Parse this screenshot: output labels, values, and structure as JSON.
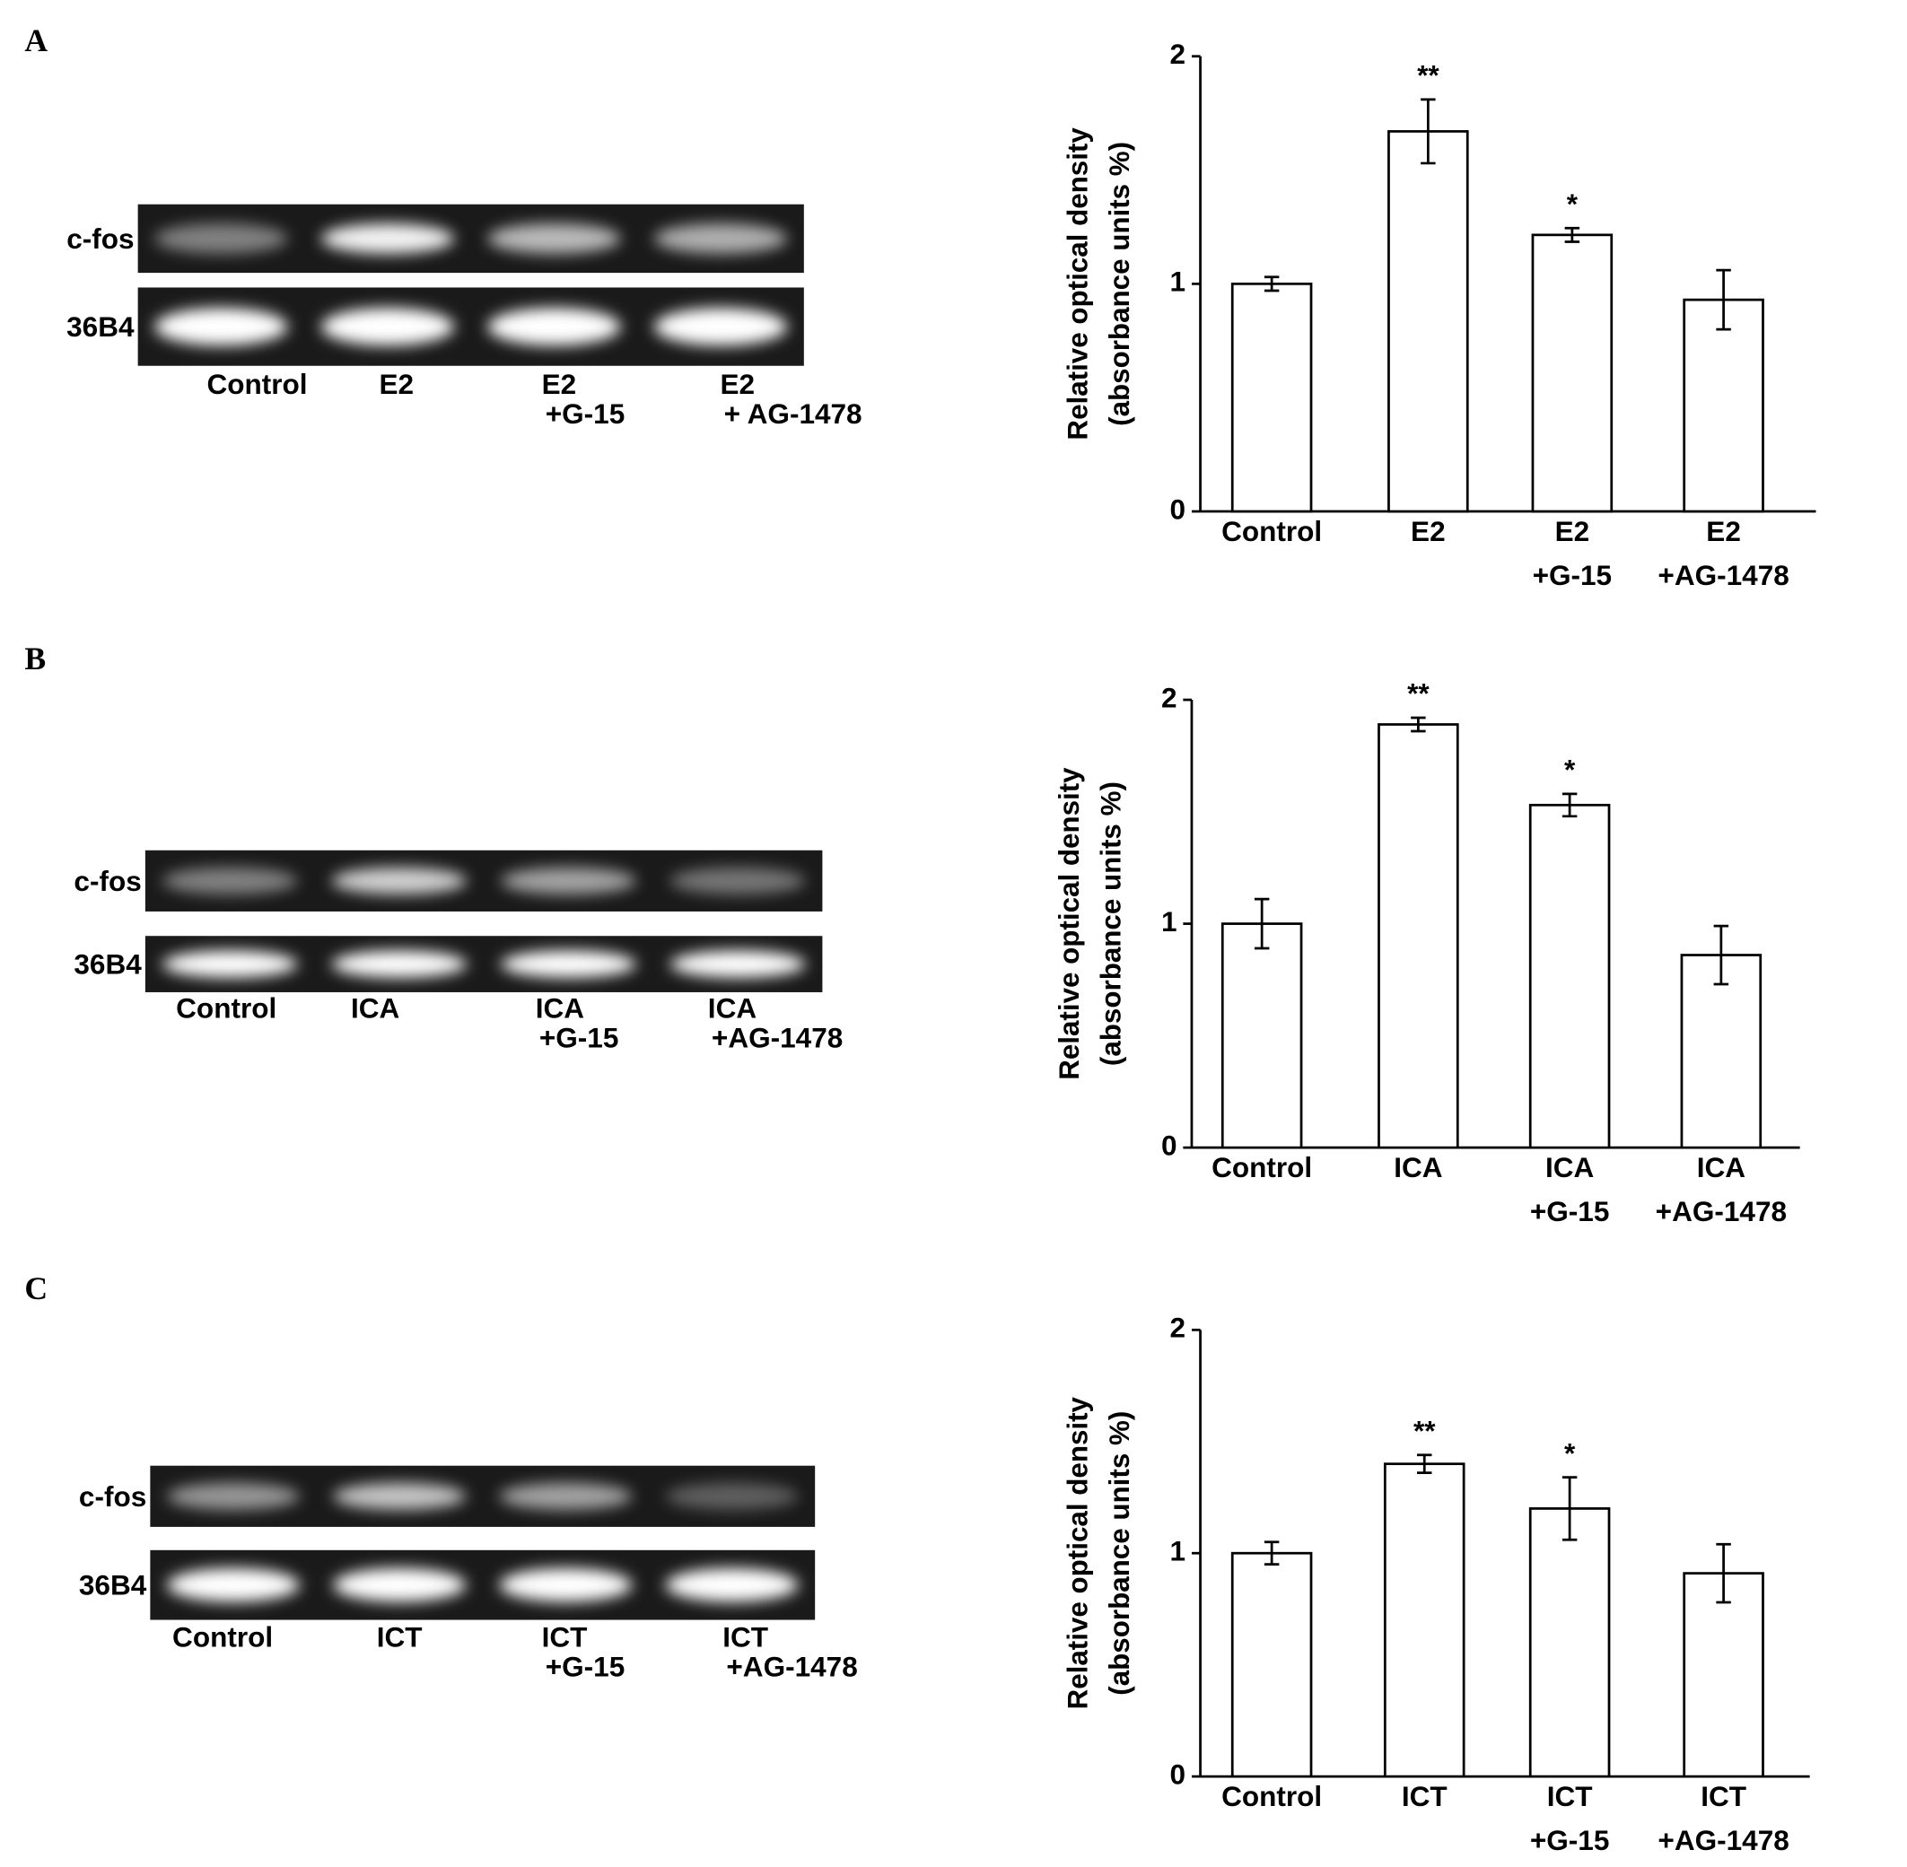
{
  "chart_data": [
    {
      "type": "bar",
      "panel_label": "A",
      "gel": {
        "rows": [
          "c-fos",
          "36B4"
        ],
        "lanes": [
          [
            "Control"
          ],
          [
            "E2"
          ],
          [
            "E2",
            "+G-15"
          ],
          [
            "E2",
            "+ AG-1478"
          ]
        ]
      },
      "ylabel": [
        "Relative optical density",
        "(absorbance units %)"
      ],
      "categories": [
        [
          "Control"
        ],
        [
          "E2"
        ],
        [
          "E2",
          "+G-15"
        ],
        [
          "E2",
          "+AG-1478"
        ]
      ],
      "values": [
        1.0,
        1.67,
        1.215,
        0.93
      ],
      "errors": [
        0.03,
        0.14,
        0.03,
        0.13
      ],
      "annotations": [
        null,
        "**",
        "*",
        null
      ],
      "color": "#ffffff",
      "ylim": [
        0,
        2
      ],
      "yticks": [
        0,
        1,
        2
      ]
    },
    {
      "type": "bar",
      "panel_label": "B",
      "gel": {
        "rows": [
          "c-fos",
          "36B4"
        ],
        "lanes": [
          [
            "Control"
          ],
          [
            "ICA"
          ],
          [
            "ICA",
            "+G-15"
          ],
          [
            "ICA",
            "+AG-1478"
          ]
        ]
      },
      "ylabel": [
        "Relative optical density",
        "(absorbance units %)"
      ],
      "categories": [
        [
          "Control"
        ],
        [
          "ICA"
        ],
        [
          "ICA",
          "+G-15"
        ],
        [
          "ICA",
          "+AG-1478"
        ]
      ],
      "values": [
        1.0,
        1.89,
        1.53,
        0.86
      ],
      "errors": [
        0.11,
        0.03,
        0.05,
        0.13
      ],
      "annotations": [
        null,
        "**",
        "*",
        null
      ],
      "color": "#ffffff",
      "ylim": [
        0,
        2
      ],
      "yticks": [
        0,
        1,
        2
      ]
    },
    {
      "type": "bar",
      "panel_label": "C",
      "gel": {
        "rows": [
          "c-fos",
          "36B4"
        ],
        "lanes": [
          [
            "Control"
          ],
          [
            "ICT"
          ],
          [
            "ICT",
            "+G-15"
          ],
          [
            "ICT",
            "+AG-1478"
          ]
        ]
      },
      "ylabel": [
        "Relative optical density",
        "(absorbance units %)"
      ],
      "categories": [
        [
          "Control"
        ],
        [
          "ICT"
        ],
        [
          "ICT",
          "+G-15"
        ],
        [
          "ICT",
          "+AG-1478"
        ]
      ],
      "values": [
        1.0,
        1.4,
        1.2,
        0.91
      ],
      "errors": [
        0.05,
        0.04,
        0.14,
        0.13
      ],
      "annotations": [
        null,
        "**",
        "*",
        null
      ],
      "color": "#ffffff",
      "ylim": [
        0,
        2
      ],
      "yticks": [
        0,
        1,
        2
      ]
    }
  ]
}
